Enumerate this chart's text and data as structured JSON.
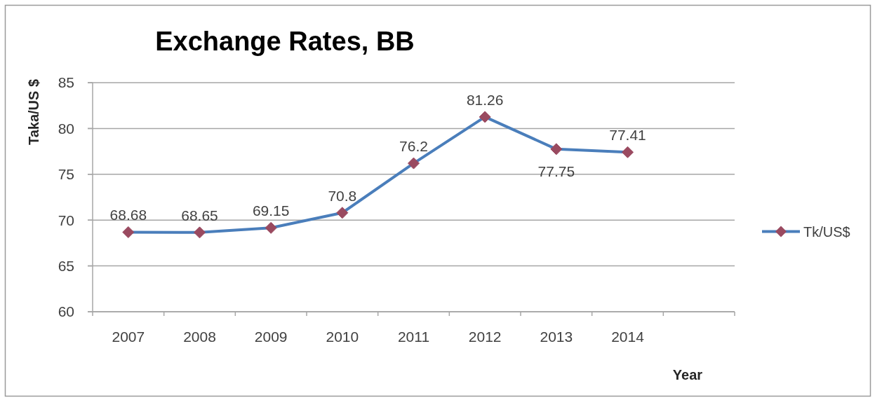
{
  "chart_data": {
    "type": "line",
    "title": "Exchange Rates, BB",
    "xlabel": "Year",
    "ylabel": "Taka/US $",
    "categories": [
      "2007",
      "2008",
      "2009",
      "2010",
      "2011",
      "2012",
      "2013",
      "2014",
      null
    ],
    "series": [
      {
        "name": "Tk/US$",
        "color": "#4a7ebb",
        "colors": [
          "#9a4a60",
          "#9a4a60",
          "#9a4a60",
          "#9a4a60",
          "#9a4a60",
          "#9a4a60",
          "#9a4a60",
          "#9a4a60",
          null
        ],
        "values": [
          68.68,
          68.65,
          69.15,
          70.8,
          76.2,
          81.26,
          77.75,
          77.41,
          null
        ]
      }
    ],
    "ylim": [
      60,
      85
    ],
    "yticks": [
      60,
      65,
      70,
      75,
      80,
      85
    ],
    "grid": "y",
    "legend": "right",
    "marker": "diamond",
    "line_style": "solid",
    "data_labels": true
  }
}
